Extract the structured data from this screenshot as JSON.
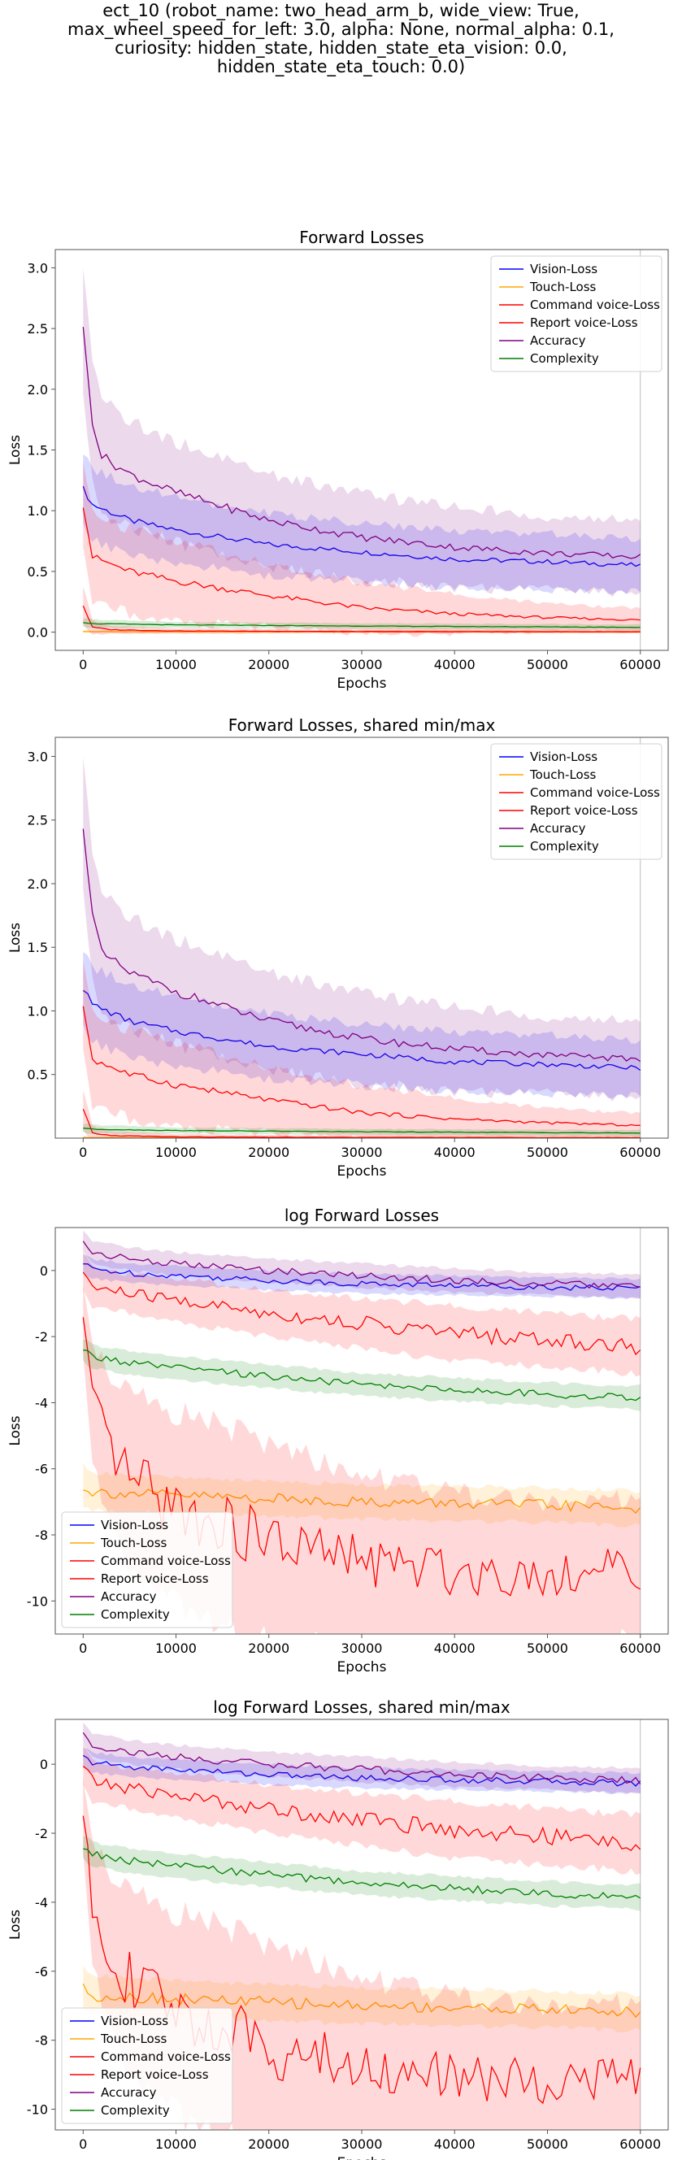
{
  "suptitle_lines": [
    "ect_10 (robot_name: two_head_arm_b, wide_view: True,",
    "max_wheel_speed_for_left: 3.0, alpha: None, normal_alpha: 0.1,",
    "curiosity: hidden_state, hidden_state_eta_vision: 0.0,",
    "hidden_state_eta_touch: 0.0)"
  ],
  "colors": {
    "Vision-Loss": "#0000ff",
    "Touch-Loss": "#ffa500",
    "Command voice-Loss": "#ff0000",
    "Report voice-Loss": "#ff0000",
    "Accuracy": "#800080",
    "Complexity": "#008000"
  },
  "chart_data": [
    {
      "type": "line",
      "title": "Forward Losses",
      "xlabel": "Epochs",
      "ylabel": "Loss",
      "xlim": [
        -3000,
        63000
      ],
      "ylim": [
        -0.15,
        3.15
      ],
      "xticks": [
        0,
        10000,
        20000,
        30000,
        40000,
        50000,
        60000
      ],
      "yticks": [
        0.0,
        0.5,
        1.0,
        1.5,
        2.0,
        2.5,
        3.0
      ],
      "legend": "top-right",
      "vline_x": 60000,
      "series": [
        {
          "name": "Vision-Loss",
          "x": [
            0,
            1000,
            5000,
            10000,
            20000,
            30000,
            40000,
            50000,
            60000
          ],
          "y": [
            1.18,
            1.05,
            0.92,
            0.84,
            0.72,
            0.66,
            0.6,
            0.58,
            0.55
          ],
          "band": [
            0.25,
            0.25,
            0.25,
            0.23,
            0.22,
            0.2,
            0.2,
            0.2,
            0.18
          ]
        },
        {
          "name": "Touch-Loss",
          "x": [
            0,
            1000,
            10000,
            30000,
            60000
          ],
          "y": [
            0.005,
            0.004,
            0.003,
            0.003,
            0.002
          ],
          "band": [
            0.01,
            0.01,
            0.01,
            0.01,
            0.01
          ]
        },
        {
          "name": "Command voice-Loss",
          "x": [
            0,
            1000,
            5000,
            10000,
            20000,
            30000,
            40000,
            50000,
            60000
          ],
          "y": [
            1.05,
            0.62,
            0.5,
            0.42,
            0.3,
            0.2,
            0.15,
            0.12,
            0.1
          ],
          "band": [
            0.3,
            0.3,
            0.3,
            0.28,
            0.22,
            0.18,
            0.14,
            0.1,
            0.08
          ]
        },
        {
          "name": "Report voice-Loss",
          "x": [
            0,
            1000,
            3000,
            10000,
            30000,
            60000
          ],
          "y": [
            0.22,
            0.04,
            0.02,
            0.01,
            0.005,
            0.003
          ],
          "band": [
            0.15,
            0.05,
            0.03,
            0.02,
            0.01,
            0.01
          ]
        },
        {
          "name": "Accuracy",
          "x": [
            0,
            1000,
            2000,
            5000,
            10000,
            20000,
            30000,
            40000,
            50000,
            60000
          ],
          "y": [
            2.48,
            1.75,
            1.45,
            1.3,
            1.15,
            0.92,
            0.78,
            0.7,
            0.65,
            0.62
          ],
          "band": [
            0.5,
            0.45,
            0.4,
            0.38,
            0.35,
            0.32,
            0.3,
            0.28,
            0.26,
            0.25
          ]
        },
        {
          "name": "Complexity",
          "x": [
            0,
            1000,
            10000,
            30000,
            60000
          ],
          "y": [
            0.08,
            0.07,
            0.06,
            0.05,
            0.04
          ],
          "band": [
            0.03,
            0.03,
            0.02,
            0.02,
            0.02
          ]
        }
      ]
    },
    {
      "type": "line",
      "title": "Forward Losses, shared min/max",
      "xlabel": "Epochs",
      "ylabel": "Loss",
      "xlim": [
        -3000,
        63000
      ],
      "ylim": [
        0.0,
        3.15
      ],
      "xticks": [
        0,
        10000,
        20000,
        30000,
        40000,
        50000,
        60000
      ],
      "yticks": [
        0.5,
        1.0,
        1.5,
        2.0,
        2.5,
        3.0
      ],
      "legend": "top-right",
      "vline_x": 60000,
      "series": [
        {
          "name": "Vision-Loss",
          "x": [
            0,
            1000,
            5000,
            10000,
            20000,
            30000,
            40000,
            50000,
            60000
          ],
          "y": [
            1.18,
            1.05,
            0.92,
            0.84,
            0.72,
            0.66,
            0.6,
            0.58,
            0.55
          ],
          "band": [
            0.25,
            0.25,
            0.25,
            0.23,
            0.22,
            0.2,
            0.2,
            0.2,
            0.18
          ]
        },
        {
          "name": "Touch-Loss",
          "x": [
            0,
            1000,
            10000,
            30000,
            60000
          ],
          "y": [
            0.005,
            0.004,
            0.003,
            0.003,
            0.002
          ],
          "band": [
            0.01,
            0.01,
            0.01,
            0.01,
            0.01
          ]
        },
        {
          "name": "Command voice-Loss",
          "x": [
            0,
            1000,
            5000,
            10000,
            20000,
            30000,
            40000,
            50000,
            60000
          ],
          "y": [
            1.05,
            0.62,
            0.5,
            0.42,
            0.3,
            0.2,
            0.15,
            0.12,
            0.1
          ],
          "band": [
            0.3,
            0.3,
            0.3,
            0.28,
            0.22,
            0.18,
            0.14,
            0.1,
            0.08
          ]
        },
        {
          "name": "Report voice-Loss",
          "x": [
            0,
            1000,
            3000,
            10000,
            30000,
            60000
          ],
          "y": [
            0.22,
            0.04,
            0.02,
            0.01,
            0.005,
            0.003
          ],
          "band": [
            0.15,
            0.05,
            0.03,
            0.02,
            0.01,
            0.01
          ]
        },
        {
          "name": "Accuracy",
          "x": [
            0,
            1000,
            2000,
            5000,
            10000,
            20000,
            30000,
            40000,
            50000,
            60000
          ],
          "y": [
            2.48,
            1.75,
            1.45,
            1.3,
            1.15,
            0.92,
            0.78,
            0.7,
            0.65,
            0.62
          ],
          "band": [
            0.5,
            0.45,
            0.4,
            0.38,
            0.35,
            0.32,
            0.3,
            0.28,
            0.26,
            0.25
          ]
        },
        {
          "name": "Complexity",
          "x": [
            0,
            1000,
            10000,
            30000,
            60000
          ],
          "y": [
            0.08,
            0.07,
            0.06,
            0.05,
            0.04
          ],
          "band": [
            0.03,
            0.03,
            0.02,
            0.02,
            0.02
          ]
        }
      ]
    },
    {
      "type": "line",
      "title": "log Forward Losses",
      "xlabel": "Epochs",
      "ylabel": "Loss",
      "xlim": [
        -3000,
        63000
      ],
      "ylim": [
        -11.0,
        1.3
      ],
      "xticks": [
        0,
        10000,
        20000,
        30000,
        40000,
        50000,
        60000
      ],
      "yticks": [
        -10,
        -8,
        -6,
        -4,
        -2,
        0
      ],
      "legend": "bottom-left",
      "vline_x": 60000,
      "series": [
        {
          "name": "Vision-Loss",
          "x": [
            0,
            1000,
            5000,
            10000,
            20000,
            30000,
            40000,
            50000,
            60000
          ],
          "y": [
            0.2,
            0.05,
            -0.08,
            -0.15,
            -0.3,
            -0.4,
            -0.45,
            -0.5,
            -0.55
          ],
          "band": [
            0.25,
            0.25,
            0.25,
            0.25,
            0.25,
            0.25,
            0.25,
            0.25,
            0.25
          ]
        },
        {
          "name": "Touch-Loss",
          "x": [
            0,
            1000,
            5000,
            10000,
            20000,
            30000,
            40000,
            50000,
            60000
          ],
          "y": [
            -6.5,
            -6.7,
            -6.75,
            -6.8,
            -6.9,
            -7.0,
            -7.05,
            -7.1,
            -7.2
          ],
          "band": [
            0.5,
            0.5,
            0.45,
            0.45,
            0.45,
            0.45,
            0.45,
            0.45,
            0.45
          ]
        },
        {
          "name": "Command voice-Loss",
          "x": [
            0,
            1000,
            5000,
            10000,
            20000,
            30000,
            40000,
            50000,
            60000
          ],
          "y": [
            0.0,
            -0.5,
            -0.7,
            -0.9,
            -1.3,
            -1.6,
            -1.9,
            -2.1,
            -2.3
          ],
          "band": [
            0.5,
            0.5,
            0.5,
            0.55,
            0.6,
            0.65,
            0.7,
            0.7,
            0.7
          ]
        },
        {
          "name": "Report voice-Loss",
          "x": [
            0,
            1000,
            3000,
            5000,
            10000,
            20000,
            30000,
            40000,
            50000,
            60000
          ],
          "y": [
            -1.5,
            -4.0,
            -5.5,
            -6.3,
            -7.2,
            -8.2,
            -8.8,
            -9.1,
            -9.2,
            -9.0
          ],
          "band": [
            1.0,
            1.5,
            2.0,
            2.5,
            2.5,
            2.5,
            2.2,
            2.0,
            1.8,
            1.8
          ]
        },
        {
          "name": "Accuracy",
          "x": [
            0,
            1000,
            5000,
            10000,
            20000,
            30000,
            40000,
            50000,
            60000
          ],
          "y": [
            0.9,
            0.55,
            0.35,
            0.2,
            0.0,
            -0.15,
            -0.3,
            -0.4,
            -0.48
          ],
          "band": [
            0.3,
            0.3,
            0.3,
            0.3,
            0.3,
            0.3,
            0.3,
            0.3,
            0.3
          ]
        },
        {
          "name": "Complexity",
          "x": [
            0,
            1000,
            5000,
            10000,
            20000,
            30000,
            40000,
            50000,
            60000
          ],
          "y": [
            -2.4,
            -2.6,
            -2.8,
            -2.95,
            -3.2,
            -3.45,
            -3.6,
            -3.75,
            -3.85
          ],
          "band": [
            0.3,
            0.3,
            0.3,
            0.3,
            0.3,
            0.3,
            0.3,
            0.3,
            0.3
          ]
        }
      ]
    },
    {
      "type": "line",
      "title": "log Forward Losses, shared min/max",
      "xlabel": "Epochs",
      "ylabel": "Loss",
      "xlim": [
        -3000,
        63000
      ],
      "ylim": [
        -10.6,
        1.3
      ],
      "xticks": [
        0,
        10000,
        20000,
        30000,
        40000,
        50000,
        60000
      ],
      "yticks": [
        -10,
        -8,
        -6,
        -4,
        -2,
        0
      ],
      "legend": "bottom-left",
      "vline_x": 60000,
      "series": [
        {
          "name": "Vision-Loss",
          "x": [
            0,
            1000,
            5000,
            10000,
            20000,
            30000,
            40000,
            50000,
            60000
          ],
          "y": [
            0.2,
            0.05,
            -0.08,
            -0.15,
            -0.3,
            -0.4,
            -0.45,
            -0.5,
            -0.55
          ],
          "band": [
            0.25,
            0.25,
            0.25,
            0.25,
            0.25,
            0.25,
            0.25,
            0.25,
            0.25
          ]
        },
        {
          "name": "Touch-Loss",
          "x": [
            0,
            1000,
            5000,
            10000,
            20000,
            30000,
            40000,
            50000,
            60000
          ],
          "y": [
            -6.5,
            -6.7,
            -6.75,
            -6.8,
            -6.9,
            -7.0,
            -7.05,
            -7.1,
            -7.2
          ],
          "band": [
            0.5,
            0.5,
            0.45,
            0.45,
            0.45,
            0.45,
            0.45,
            0.45,
            0.45
          ]
        },
        {
          "name": "Command voice-Loss",
          "x": [
            0,
            1000,
            5000,
            10000,
            20000,
            30000,
            40000,
            50000,
            60000
          ],
          "y": [
            0.0,
            -0.5,
            -0.7,
            -0.9,
            -1.3,
            -1.6,
            -1.9,
            -2.1,
            -2.3
          ],
          "band": [
            0.5,
            0.5,
            0.5,
            0.55,
            0.6,
            0.65,
            0.7,
            0.7,
            0.7
          ]
        },
        {
          "name": "Report voice-Loss",
          "x": [
            0,
            1000,
            3000,
            5000,
            10000,
            20000,
            30000,
            40000,
            50000,
            60000
          ],
          "y": [
            -1.5,
            -4.0,
            -5.5,
            -6.3,
            -7.2,
            -8.2,
            -8.8,
            -9.1,
            -9.2,
            -9.0
          ],
          "band": [
            1.0,
            1.5,
            2.0,
            2.5,
            2.5,
            2.5,
            2.2,
            2.0,
            1.8,
            1.8
          ]
        },
        {
          "name": "Accuracy",
          "x": [
            0,
            1000,
            5000,
            10000,
            20000,
            30000,
            40000,
            50000,
            60000
          ],
          "y": [
            0.9,
            0.55,
            0.35,
            0.2,
            0.0,
            -0.15,
            -0.3,
            -0.4,
            -0.48
          ],
          "band": [
            0.3,
            0.3,
            0.3,
            0.3,
            0.3,
            0.3,
            0.3,
            0.3,
            0.3
          ]
        },
        {
          "name": "Complexity",
          "x": [
            0,
            1000,
            5000,
            10000,
            20000,
            30000,
            40000,
            50000,
            60000
          ],
          "y": [
            -2.4,
            -2.6,
            -2.8,
            -2.95,
            -3.2,
            -3.45,
            -3.6,
            -3.75,
            -3.85
          ],
          "band": [
            0.3,
            0.3,
            0.3,
            0.3,
            0.3,
            0.3,
            0.3,
            0.3,
            0.3
          ]
        }
      ]
    }
  ]
}
